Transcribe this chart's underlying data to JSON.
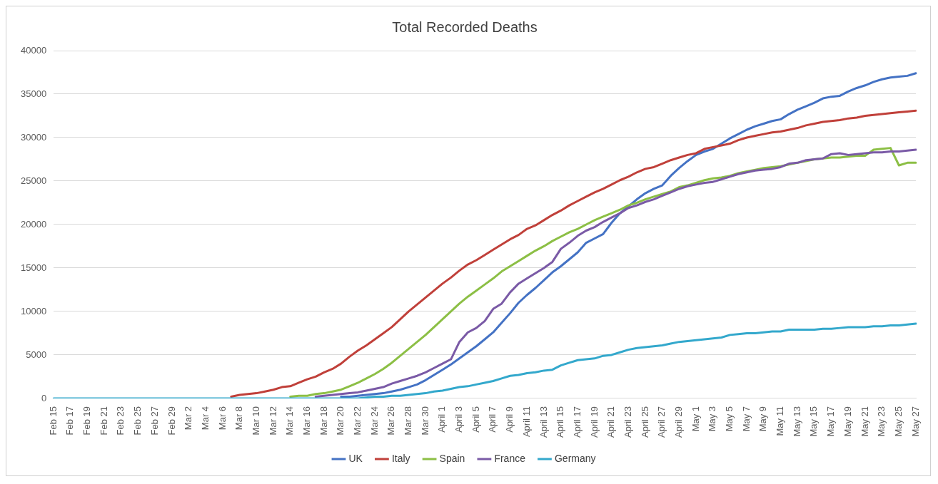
{
  "chart_data": {
    "type": "line",
    "title": "Total Recorded Deaths",
    "categories": [
      "Feb 15",
      null,
      "Feb 17",
      null,
      "Feb 19",
      null,
      "Feb 21",
      null,
      "Feb 23",
      null,
      "Feb 25",
      null,
      "Feb 27",
      null,
      "Feb 29",
      null,
      "Mar 2",
      null,
      "Mar 4",
      null,
      "Mar 6",
      null,
      "Mar 8",
      null,
      "Mar 10",
      null,
      "Mar 12",
      null,
      "Mar 14",
      null,
      "Mar 16",
      null,
      "Mar 18",
      null,
      "Mar 20",
      null,
      "Mar 22",
      null,
      "Mar 24",
      null,
      "Mar 26",
      null,
      "Mar 28",
      null,
      "Mar 30",
      null,
      "April 1",
      null,
      "April 3",
      null,
      "April 5",
      null,
      "April 7",
      null,
      "April 9",
      null,
      "April 11",
      null,
      "April 13",
      null,
      "April 15",
      null,
      "April 17",
      null,
      "April 19",
      null,
      "April 21",
      null,
      "April 23",
      null,
      "April 25",
      null,
      "April 27",
      null,
      "April 29",
      null,
      "May 1",
      null,
      "May 3",
      null,
      "May 5",
      null,
      "May 7",
      null,
      "May 9",
      null,
      "May 11",
      null,
      "May 13",
      null,
      "May 15",
      null,
      "May 17",
      null,
      "May 19",
      null,
      "May 21",
      null,
      "May 23",
      null,
      "May 25",
      null,
      "May 27"
    ],
    "series": [
      {
        "name": "UK",
        "color": "#4472c4",
        "values": [
          null,
          null,
          null,
          null,
          null,
          null,
          null,
          null,
          null,
          null,
          null,
          null,
          null,
          null,
          null,
          null,
          null,
          null,
          null,
          null,
          null,
          null,
          null,
          null,
          null,
          null,
          null,
          null,
          null,
          null,
          null,
          null,
          null,
          null,
          200,
          200,
          300,
          400,
          500,
          600,
          800,
          1000,
          1300,
          1600,
          2100,
          2700,
          3300,
          3900,
          4600,
          5300,
          6000,
          6800,
          7600,
          8700,
          9800,
          11000,
          11900,
          12700,
          13600,
          14500,
          15200,
          16000,
          16800,
          17900,
          18400,
          18900,
          20200,
          21300,
          22100,
          22900,
          23600,
          24100,
          24500,
          25600,
          26500,
          27300,
          28000,
          28400,
          28700,
          29300,
          29900,
          30400,
          30900,
          31300,
          31600,
          31900,
          32100,
          32700,
          33200,
          33600,
          34000,
          34500,
          34700,
          34800,
          35300,
          35700,
          36000,
          36400,
          36700,
          36900,
          37000,
          37100,
          37400
        ]
      },
      {
        "name": "Italy",
        "color": "#c0403a",
        "values": [
          null,
          null,
          null,
          null,
          null,
          null,
          null,
          null,
          null,
          null,
          null,
          null,
          null,
          null,
          null,
          null,
          null,
          null,
          null,
          null,
          null,
          200,
          400,
          500,
          600,
          800,
          1000,
          1300,
          1400,
          1800,
          2200,
          2500,
          3000,
          3400,
          4000,
          4800,
          5500,
          6100,
          6800,
          7500,
          8200,
          9100,
          10000,
          10800,
          11600,
          12400,
          13200,
          13900,
          14700,
          15400,
          15900,
          16500,
          17100,
          17700,
          18300,
          18800,
          19500,
          19900,
          20500,
          21100,
          21600,
          22200,
          22700,
          23200,
          23700,
          24100,
          24600,
          25100,
          25500,
          26000,
          26400,
          26600,
          27000,
          27400,
          27700,
          28000,
          28200,
          28700,
          28900,
          29100,
          29300,
          29700,
          30000,
          30200,
          30400,
          30600,
          30700,
          30900,
          31100,
          31400,
          31600,
          31800,
          31900,
          32000,
          32200,
          32300,
          32500,
          32600,
          32700,
          32800,
          32900,
          33000,
          33100
        ]
      },
      {
        "name": "Spain",
        "color": "#8cbf45",
        "values": [
          null,
          null,
          null,
          null,
          null,
          null,
          null,
          null,
          null,
          null,
          null,
          null,
          null,
          null,
          null,
          null,
          null,
          null,
          null,
          null,
          null,
          null,
          null,
          null,
          null,
          null,
          null,
          null,
          200,
          300,
          300,
          500,
          600,
          800,
          1000,
          1400,
          1800,
          2300,
          2800,
          3400,
          4100,
          4900,
          5700,
          6500,
          7300,
          8200,
          9100,
          10000,
          10900,
          11700,
          12400,
          13100,
          13800,
          14600,
          15200,
          15800,
          16400,
          17000,
          17500,
          18100,
          18600,
          19100,
          19500,
          20000,
          20500,
          20900,
          21300,
          21700,
          22200,
          22500,
          22900,
          23200,
          23500,
          23800,
          24300,
          24500,
          24800,
          25100,
          25300,
          25400,
          25600,
          25900,
          26100,
          26300,
          26500,
          26600,
          26700,
          26900,
          27100,
          27300,
          27500,
          27600,
          27700,
          27700,
          27800,
          27900,
          27900,
          28600,
          28700,
          28800,
          26800,
          27100,
          27100
        ]
      },
      {
        "name": "France",
        "color": "#7a5aa6",
        "values": [
          null,
          null,
          null,
          null,
          null,
          null,
          null,
          null,
          null,
          null,
          null,
          null,
          null,
          null,
          null,
          null,
          null,
          null,
          null,
          null,
          null,
          null,
          null,
          null,
          null,
          null,
          null,
          null,
          null,
          null,
          null,
          200,
          300,
          400,
          500,
          600,
          700,
          900,
          1100,
          1300,
          1700,
          2000,
          2300,
          2600,
          3000,
          3500,
          4000,
          4500,
          6500,
          7600,
          8100,
          8900,
          10300,
          10900,
          12200,
          13200,
          13800,
          14400,
          15000,
          15700,
          17200,
          17900,
          18700,
          19300,
          19700,
          20300,
          20800,
          21300,
          21900,
          22200,
          22600,
          22900,
          23300,
          23700,
          24100,
          24400,
          24600,
          24800,
          24900,
          25200,
          25500,
          25800,
          26000,
          26200,
          26300,
          26400,
          26600,
          27000,
          27100,
          27400,
          27500,
          27600,
          28100,
          28200,
          28000,
          28100,
          28200,
          28300,
          28300,
          28400,
          28400,
          28500,
          28600
        ]
      },
      {
        "name": "Germany",
        "color": "#33a8cc",
        "values": [
          0,
          0,
          0,
          0,
          0,
          0,
          0,
          0,
          0,
          0,
          0,
          0,
          0,
          0,
          0,
          0,
          0,
          0,
          0,
          0,
          0,
          0,
          0,
          0,
          0,
          0,
          0,
          0,
          0,
          0,
          0,
          0,
          0,
          0,
          0,
          0,
          0,
          100,
          200,
          200,
          300,
          300,
          400,
          500,
          600,
          800,
          900,
          1100,
          1300,
          1400,
          1600,
          1800,
          2000,
          2300,
          2600,
          2700,
          2900,
          3000,
          3200,
          3300,
          3800,
          4100,
          4400,
          4500,
          4600,
          4900,
          5000,
          5300,
          5600,
          5800,
          5900,
          6000,
          6100,
          6300,
          6500,
          6600,
          6700,
          6800,
          6900,
          7000,
          7300,
          7400,
          7500,
          7500,
          7600,
          7700,
          7700,
          7900,
          7900,
          7900,
          7900,
          8000,
          8000,
          8100,
          8200,
          8200,
          8200,
          8300,
          8300,
          8400,
          8400,
          8500,
          8600
        ]
      }
    ],
    "ylim": [
      0,
      40000
    ],
    "yticks": [
      0,
      5000,
      10000,
      15000,
      20000,
      25000,
      30000,
      35000,
      40000
    ],
    "grid": "y",
    "legend": "bottom",
    "marker": "none",
    "line_style": "solid"
  }
}
